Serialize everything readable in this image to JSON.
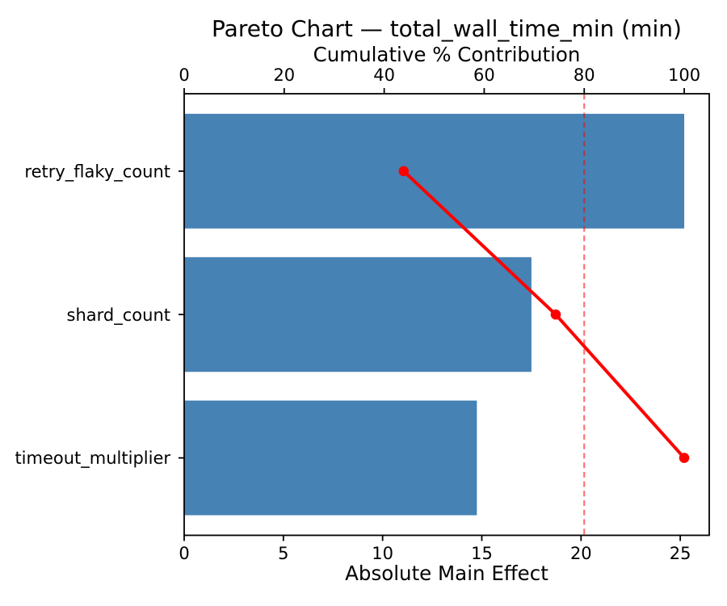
{
  "chart_data": {
    "type": "bar",
    "subtype": "pareto",
    "orientation": "horizontal",
    "title": "Pareto Chart — total_wall_time_min (min)",
    "top_axis": {
      "label": "Cumulative % Contribution",
      "ticks": [
        0,
        20,
        40,
        60,
        80,
        100
      ],
      "range": [
        0,
        105
      ]
    },
    "bottom_axis": {
      "label": "Absolute Main Effect",
      "ticks": [
        0,
        5,
        10,
        15,
        20,
        25
      ],
      "range": [
        0,
        26.46
      ]
    },
    "categories": [
      "retry_flaky_count",
      "shard_count",
      "timeout_multiplier"
    ],
    "series": [
      {
        "name": "absolute_main_effect",
        "type": "bar",
        "values": [
          25.2,
          17.5,
          14.75
        ]
      },
      {
        "name": "cumulative_pct",
        "type": "line",
        "values": [
          43.9,
          74.3,
          100.0
        ]
      }
    ],
    "threshold": {
      "value": 80,
      "axis": "top",
      "style": "dashed"
    },
    "grid": false,
    "legend": false,
    "colors": {
      "bar": "#4682B4",
      "line": "#FF0000",
      "marker": "#FF0000",
      "threshold_line": "#FF0000",
      "threshold_opacity": 0.55,
      "spine": "#000000",
      "text": "#000000",
      "background": "#FFFFFF"
    }
  }
}
